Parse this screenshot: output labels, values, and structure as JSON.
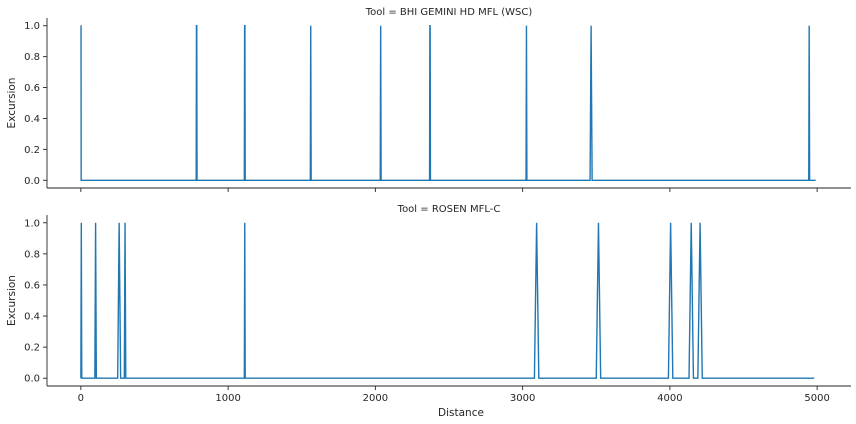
{
  "chart_data": [
    {
      "type": "line",
      "title": "Tool = BHI GEMINI HD MFL (WSC)",
      "xlabel": "",
      "ylabel": "Excursion",
      "xlim": [
        -230,
        5230
      ],
      "ylim": [
        -0.05,
        1.05
      ],
      "xticks": [
        0,
        1000,
        2000,
        3000,
        4000,
        5000
      ],
      "xtick_labels": [
        "",
        "",
        "",
        "",
        "",
        ""
      ],
      "yticks": [
        0.0,
        0.2,
        0.4,
        0.6,
        0.8,
        1.0
      ],
      "ytick_labels": [
        "0.0",
        "0.2",
        "0.4",
        "0.6",
        "0.8",
        "1.0"
      ],
      "grid": false,
      "legend": "none",
      "color": "#1f77b4",
      "series": [
        {
          "x": [
            0,
            1,
            2,
            783,
            785,
            787,
            789,
            1110,
            1112,
            1114,
            1116,
            1558,
            1561,
            1564,
            2033,
            2036,
            2039,
            2368,
            2370,
            2372,
            2374,
            3023,
            3026,
            3029,
            3458,
            3465,
            3472,
            4943,
            4946,
            4949,
            4990
          ],
          "y": [
            1,
            1,
            0,
            0,
            1,
            1,
            0,
            0,
            1,
            1,
            0,
            0,
            1,
            0,
            0,
            1,
            0,
            0,
            1,
            1,
            0,
            0,
            1,
            0,
            0,
            1,
            0,
            0,
            1,
            0,
            0
          ]
        }
      ]
    },
    {
      "type": "line",
      "title": "Tool = ROSEN MFL-C",
      "xlabel": "Distance",
      "ylabel": "Excursion",
      "xlim": [
        -230,
        5230
      ],
      "ylim": [
        -0.05,
        1.05
      ],
      "xticks": [
        0,
        1000,
        2000,
        3000,
        4000,
        5000
      ],
      "xtick_labels": [
        "0",
        "1000",
        "2000",
        "3000",
        "4000",
        "5000"
      ],
      "yticks": [
        0.0,
        0.2,
        0.4,
        0.6,
        0.8,
        1.0
      ],
      "ytick_labels": [
        "0.0",
        "0.2",
        "0.4",
        "0.6",
        "0.8",
        "1.0"
      ],
      "grid": false,
      "legend": "none",
      "color": "#1f77b4",
      "series": [
        {
          "x": [
            0,
            3,
            6,
            95,
            100,
            105,
            250,
            260,
            270,
            295,
            300,
            305,
            1110,
            1113,
            1116,
            3080,
            3095,
            3110,
            3500,
            3515,
            3530,
            3990,
            4005,
            4020,
            4130,
            4145,
            4160,
            4190,
            4205,
            4220,
            4980
          ],
          "y": [
            0,
            1,
            0,
            0,
            1,
            0,
            0,
            1,
            0,
            0,
            1,
            0,
            0,
            1,
            0,
            0,
            1,
            0,
            0,
            1,
            0,
            0,
            1,
            0,
            0,
            1,
            0,
            0,
            1,
            0,
            0
          ]
        }
      ]
    }
  ]
}
